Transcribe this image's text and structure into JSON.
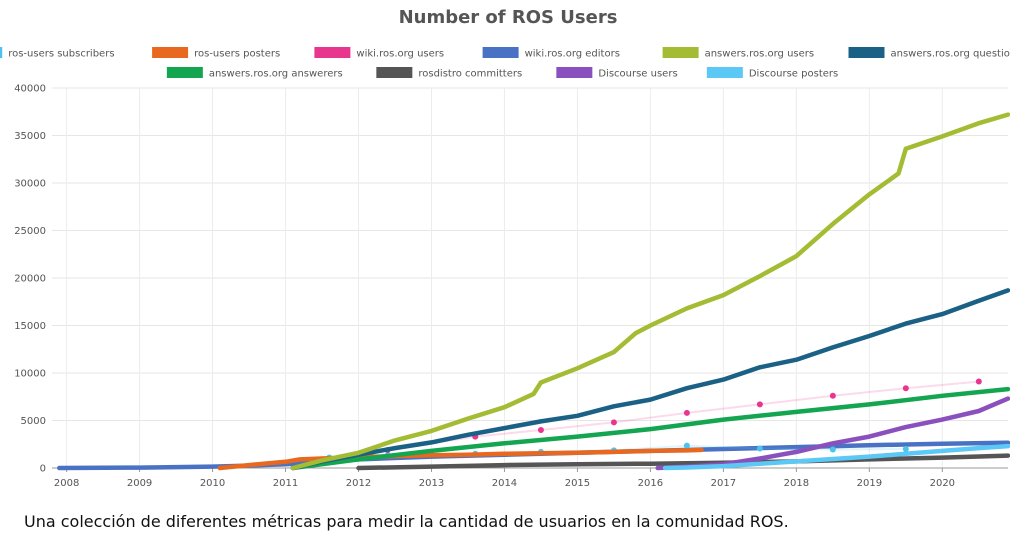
{
  "caption": "Una colección de diferentes métricas para medir la cantidad de usuarios en la comunidad ROS.",
  "chart_data": {
    "type": "line",
    "title": "Number of ROS Users",
    "xlabel": "",
    "ylabel": "",
    "xlim": [
      2007.8,
      2020.9
    ],
    "ylim": [
      0,
      40000
    ],
    "x_ticks": [
      2008,
      2009,
      2010,
      2011,
      2012,
      2013,
      2014,
      2015,
      2016,
      2017,
      2018,
      2019,
      2020
    ],
    "x_tick_labels": [
      "2008",
      "2009",
      "2010",
      "2011",
      "2012",
      "2013",
      "2014",
      "2015",
      "2016",
      "2017",
      "2018",
      "2019",
      "2020"
    ],
    "y_ticks": [
      0,
      5000,
      10000,
      15000,
      20000,
      25000,
      30000,
      35000,
      40000
    ],
    "y_tick_labels": [
      "0",
      "5000",
      "10000",
      "15000",
      "20000",
      "25000",
      "30000",
      "35000",
      "40000"
    ],
    "grid": true,
    "legend_position": "top",
    "series": [
      {
        "name": "ros-users subscribers",
        "color": "#4dc3ec",
        "style": "sparse",
        "x": [
          2011.6,
          2012.4,
          2013.6,
          2014.5,
          2015.5,
          2016.5,
          2017.5,
          2018.5,
          2019.5
        ],
        "y": [
          1100,
          1350,
          1500,
          1700,
          1850,
          2350,
          2050,
          1950,
          2000
        ]
      },
      {
        "name": "ros-users posters",
        "color": "#e8681f",
        "style": "thick",
        "x": [
          2010.1,
          2010.5,
          2011.0,
          2011.2,
          2011.5,
          2012.0,
          2012.5,
          2013.0,
          2013.5,
          2014.0,
          2014.5,
          2015.0,
          2015.5,
          2016.0,
          2016.5,
          2016.7
        ],
        "y": [
          0,
          300,
          650,
          900,
          1000,
          1150,
          1250,
          1350,
          1400,
          1500,
          1550,
          1600,
          1700,
          1800,
          1850,
          1900
        ]
      },
      {
        "name": "wiki.ros.org users",
        "color": "#e8368f",
        "style": "sparse",
        "x": [
          2012.4,
          2013.6,
          2014.5,
          2015.5,
          2016.5,
          2017.5,
          2018.5,
          2019.5,
          2020.5
        ],
        "y": [
          1900,
          3300,
          4000,
          4800,
          5800,
          6700,
          7600,
          8400,
          9100
        ]
      },
      {
        "name": "wiki.ros.org editors",
        "color": "#4a72c4",
        "style": "thick",
        "x": [
          2007.9,
          2008.5,
          2009.0,
          2009.5,
          2010.0,
          2010.5,
          2011.0,
          2011.5,
          2012.0,
          2013.0,
          2014.0,
          2015.0,
          2016.0,
          2017.0,
          2018.0,
          2019.0,
          2020.0,
          2020.9
        ],
        "y": [
          0,
          20,
          40,
          100,
          150,
          250,
          400,
          600,
          900,
          1200,
          1400,
          1600,
          1800,
          2000,
          2200,
          2400,
          2550,
          2650
        ]
      },
      {
        "name": "answers.ros.org users",
        "color": "#a3bc33",
        "style": "thick",
        "x": [
          2011.1,
          2011.5,
          2012.0,
          2012.5,
          2013.0,
          2013.5,
          2014.0,
          2014.4,
          2014.5,
          2015.0,
          2015.5,
          2015.8,
          2016.0,
          2016.5,
          2017.0,
          2017.5,
          2018.0,
          2018.5,
          2019.0,
          2019.4,
          2019.5,
          2020.0,
          2020.5,
          2020.9
        ],
        "y": [
          0,
          800,
          1600,
          2900,
          3900,
          5200,
          6400,
          7800,
          9000,
          10500,
          12200,
          14200,
          15000,
          16800,
          18200,
          20200,
          22300,
          25700,
          28800,
          31000,
          33600,
          34900,
          36300,
          37200
        ]
      },
      {
        "name": "answers.ros.org questioners",
        "color": "#1b6185",
        "style": "thick",
        "x": [
          2011.1,
          2011.5,
          2012.0,
          2012.5,
          2013.0,
          2013.5,
          2014.0,
          2014.5,
          2015.0,
          2015.5,
          2016.0,
          2016.5,
          2017.0,
          2017.5,
          2018.0,
          2018.5,
          2019.0,
          2019.5,
          2020.0,
          2020.5,
          2020.9
        ],
        "y": [
          0,
          700,
          1400,
          2100,
          2700,
          3500,
          4200,
          4900,
          5500,
          6500,
          7200,
          8400,
          9300,
          10600,
          11400,
          12700,
          13900,
          15200,
          16200,
          17600,
          18700
        ]
      },
      {
        "name": "answers.ros.org answerers",
        "color": "#13a550",
        "style": "thick",
        "x": [
          2011.1,
          2012.0,
          2013.0,
          2014.0,
          2015.0,
          2016.0,
          2017.0,
          2018.0,
          2019.0,
          2020.0,
          2020.9
        ],
        "y": [
          0,
          900,
          1800,
          2600,
          3300,
          4100,
          5100,
          5900,
          6700,
          7600,
          8300
        ]
      },
      {
        "name": "rosdistro committers",
        "color": "#555555",
        "style": "thick",
        "x": [
          2012.0,
          2013.0,
          2014.0,
          2015.0,
          2016.0,
          2017.0,
          2018.0,
          2019.0,
          2020.0,
          2020.9
        ],
        "y": [
          0,
          150,
          300,
          400,
          450,
          550,
          700,
          900,
          1100,
          1300
        ]
      },
      {
        "name": "Discourse users",
        "color": "#8a50bd",
        "style": "thick",
        "x": [
          2016.1,
          2016.5,
          2017.0,
          2017.5,
          2018.0,
          2018.5,
          2019.0,
          2019.5,
          2020.0,
          2020.5,
          2020.9
        ],
        "y": [
          0,
          150,
          400,
          1000,
          1700,
          2600,
          3300,
          4300,
          5100,
          6000,
          7300
        ]
      },
      {
        "name": "Discourse posters",
        "color": "#5bc8f5",
        "style": "thick",
        "x": [
          2016.2,
          2016.5,
          2017.0,
          2017.5,
          2018.0,
          2018.5,
          2019.0,
          2019.5,
          2020.0,
          2020.5,
          2020.9
        ],
        "y": [
          0,
          50,
          200,
          450,
          700,
          950,
          1200,
          1500,
          1800,
          2100,
          2300
        ]
      }
    ]
  }
}
